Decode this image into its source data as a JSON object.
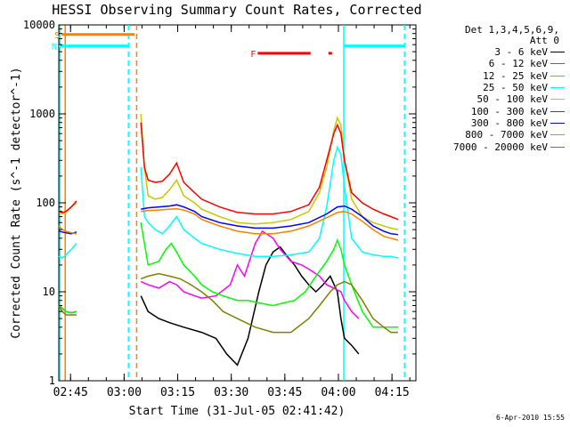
{
  "chart_data": {
    "type": "line",
    "title": "HESSI Observing Summary Count Rates, Corrected",
    "xlabel": "Start Time (31-Jul-05 02:41:42)",
    "ylabel": "Corrected Count Rate (s^-1 detector^-1)",
    "yscale": "log",
    "ylim": [
      1,
      10000
    ],
    "xlim_minutes": [
      0,
      100
    ],
    "xticks": [
      {
        "minute": 3.3,
        "label": "02:45"
      },
      {
        "minute": 18.3,
        "label": "03:00"
      },
      {
        "minute": 33.3,
        "label": "03:15"
      },
      {
        "minute": 48.3,
        "label": "03:30"
      },
      {
        "minute": 63.3,
        "label": "03:45"
      },
      {
        "minute": 78.3,
        "label": "04:00"
      },
      {
        "minute": 93.3,
        "label": "04:15"
      }
    ],
    "yticks": [
      1,
      10,
      100,
      1000,
      10000
    ],
    "ytick_labels": [
      "1",
      "10",
      "100",
      "1000",
      "10000"
    ],
    "grid": false,
    "legend_position": "right",
    "legend_header": [
      "Det 1,3,4,5,6,9,",
      "Att 0"
    ],
    "series": [
      {
        "name": "3 - 6 keV",
        "color": "#000000",
        "x": [
          0,
          1,
          2,
          3.5,
          5,
          23,
          25,
          28,
          31,
          35,
          40,
          44,
          47,
          50,
          53,
          56,
          58,
          60,
          62,
          64,
          66,
          68,
          70,
          72,
          74,
          76,
          78,
          79,
          80,
          82,
          84
        ],
        "y": [
          7,
          6.5,
          6,
          5.8,
          6,
          9,
          6,
          5,
          4.5,
          4,
          3.5,
          3,
          2,
          1.5,
          3,
          10,
          20,
          28,
          32,
          25,
          20,
          15,
          12,
          10,
          12,
          15,
          10,
          5,
          3,
          2.5,
          2
        ]
      },
      {
        "name": "6 - 12 keV",
        "color": "#ff00ff",
        "x": [
          0,
          1,
          2,
          3.5,
          5,
          23,
          25,
          28,
          31,
          33,
          35,
          38,
          40,
          44,
          48,
          50,
          52,
          55,
          57,
          60,
          62,
          65,
          68,
          70,
          73,
          75,
          77,
          79,
          80,
          82,
          84
        ],
        "y": [
          7,
          6.5,
          6,
          5.8,
          6,
          13,
          12,
          11,
          13,
          12,
          10,
          9,
          8.5,
          9,
          12,
          20,
          15,
          35,
          48,
          40,
          30,
          22,
          20,
          18,
          15,
          12,
          11,
          10,
          8,
          6,
          5
        ]
      },
      {
        "name": "12 - 25 keV",
        "color": "#00ff00",
        "x": [
          0,
          1,
          2,
          3.5,
          5,
          23,
          25,
          28,
          30,
          31.5,
          33,
          35,
          38,
          40,
          43,
          46,
          50,
          53,
          56,
          60,
          63,
          66,
          69,
          72,
          75,
          77,
          78,
          79,
          80,
          82,
          85,
          88,
          91,
          93,
          95
        ],
        "y": [
          7,
          6.5,
          6,
          5.8,
          6,
          60,
          20,
          22,
          30,
          35,
          28,
          20,
          15,
          12,
          10,
          9,
          8,
          8,
          7.5,
          7,
          7.5,
          8,
          10,
          15,
          22,
          30,
          38,
          30,
          20,
          12,
          6,
          4,
          4,
          4,
          4
        ]
      },
      {
        "name": "25 - 50 keV",
        "color": "#00ffff",
        "x": [
          0,
          1,
          2,
          3.5,
          5,
          23,
          24,
          25,
          27,
          29,
          31,
          33,
          35,
          38,
          40,
          45,
          50,
          55,
          60,
          65,
          70,
          73,
          75,
          77,
          78,
          79,
          80,
          82,
          85,
          88,
          91,
          93,
          95
        ],
        "y": [
          25,
          24,
          26,
          30,
          35,
          250,
          70,
          60,
          50,
          45,
          55,
          70,
          50,
          40,
          35,
          30,
          27,
          25,
          25,
          26,
          28,
          40,
          90,
          300,
          420,
          350,
          150,
          40,
          28,
          26,
          25,
          25,
          24
        ]
      },
      {
        "name": "50 - 100 keV",
        "color": "#c8c800",
        "x": [
          0,
          1,
          2,
          3.5,
          5,
          23,
          24,
          25,
          27,
          29,
          31,
          33,
          35,
          38,
          40,
          45,
          50,
          55,
          60,
          65,
          70,
          73,
          75,
          77,
          78,
          79,
          80,
          82,
          85,
          88,
          91,
          93,
          95
        ],
        "y": [
          80,
          75,
          78,
          90,
          100,
          1000,
          250,
          120,
          110,
          115,
          140,
          180,
          120,
          100,
          85,
          70,
          60,
          58,
          60,
          65,
          80,
          130,
          250,
          650,
          900,
          750,
          300,
          110,
          70,
          60,
          55,
          52,
          50
        ]
      },
      {
        "name": "100 - 300 keV",
        "color": "#ff0000",
        "x": [
          0,
          1,
          2,
          3.5,
          5,
          23,
          24,
          25,
          27,
          29,
          31,
          33,
          35,
          38,
          40,
          45,
          50,
          55,
          60,
          65,
          70,
          73,
          75,
          77,
          78,
          79,
          80,
          82,
          85,
          88,
          91,
          93,
          95
        ],
        "y": [
          80,
          78,
          80,
          90,
          105,
          800,
          250,
          180,
          170,
          175,
          210,
          280,
          170,
          130,
          110,
          90,
          78,
          75,
          75,
          80,
          95,
          150,
          300,
          600,
          750,
          600,
          300,
          130,
          100,
          85,
          75,
          70,
          65
        ]
      },
      {
        "name": "300 - 800 keV",
        "color": "#0000ff",
        "x": [
          0,
          1,
          2,
          3.5,
          5,
          23,
          25,
          28,
          31,
          33,
          35,
          38,
          40,
          45,
          50,
          55,
          60,
          65,
          70,
          75,
          78,
          80,
          82,
          85,
          88,
          91,
          93,
          95
        ],
        "y": [
          48,
          47,
          46,
          45,
          47,
          85,
          88,
          90,
          92,
          95,
          90,
          80,
          70,
          60,
          55,
          52,
          52,
          55,
          60,
          75,
          90,
          92,
          85,
          70,
          55,
          48,
          45,
          44
        ]
      },
      {
        "name": "800 - 7000 keV",
        "color": "#ff8000",
        "x": [
          0,
          1,
          2,
          3.5,
          5,
          23,
          25,
          28,
          31,
          33,
          35,
          38,
          40,
          45,
          50,
          55,
          60,
          65,
          70,
          75,
          78,
          80,
          82,
          85,
          88,
          91,
          93,
          95
        ],
        "y": [
          55,
          50,
          48,
          46,
          45,
          80,
          82,
          83,
          85,
          86,
          83,
          75,
          65,
          55,
          48,
          45,
          45,
          48,
          55,
          68,
          78,
          80,
          75,
          62,
          50,
          42,
          40,
          38
        ]
      },
      {
        "name": "7000 - 20000 keV",
        "color": "#808000",
        "x": [
          0,
          1,
          2,
          3.5,
          5,
          23,
          25,
          28,
          31,
          34,
          37,
          40,
          43,
          46,
          50,
          55,
          60,
          65,
          70,
          73,
          76,
          78,
          80,
          82,
          85,
          88,
          91,
          93,
          95
        ],
        "y": [
          7,
          6,
          5.5,
          5.5,
          5.5,
          14,
          15,
          16,
          15,
          14,
          12,
          10,
          8,
          6,
          5,
          4,
          3.5,
          3.5,
          5,
          7,
          10,
          12,
          13,
          12,
          8,
          5,
          4,
          3.5,
          3.5
        ]
      }
    ],
    "vertical_markers": [
      {
        "minute": 0.3,
        "color": "#00ffff",
        "style": "solid"
      },
      {
        "minute": 1.8,
        "color": "#ff8000",
        "style": "solid"
      },
      {
        "minute": 19.5,
        "color": "#00ffff",
        "style": "dashed"
      },
      {
        "minute": 21.8,
        "color": "#ff8000",
        "style": "dashed"
      },
      {
        "minute": 79.8,
        "color": "#00ffff",
        "style": "solid"
      },
      {
        "minute": 96.8,
        "color": "#00ffff",
        "style": "dashed"
      }
    ],
    "top_bars": [
      {
        "label": "S",
        "color": "#ff8000",
        "x_start": 0.8,
        "x_end": 21.2,
        "y": 7800
      },
      {
        "label": "N",
        "color": "#00ffff",
        "x_start": 0,
        "x_end": 19.2,
        "y": 5800
      },
      {
        "label": "",
        "color": "#00ffff",
        "x_start": 79.8,
        "x_end": 96.8,
        "y": 5800
      },
      {
        "label": "F",
        "color": "#ff0000",
        "x_start": 55.7,
        "x_end": 70.5,
        "y": 4800
      },
      {
        "label": "",
        "color": "#ff0000",
        "x_start": 75.5,
        "x_end": 76.5,
        "y": 4800
      }
    ]
  },
  "footer": {
    "date_stamp": "6-Apr-2010 15:55"
  }
}
